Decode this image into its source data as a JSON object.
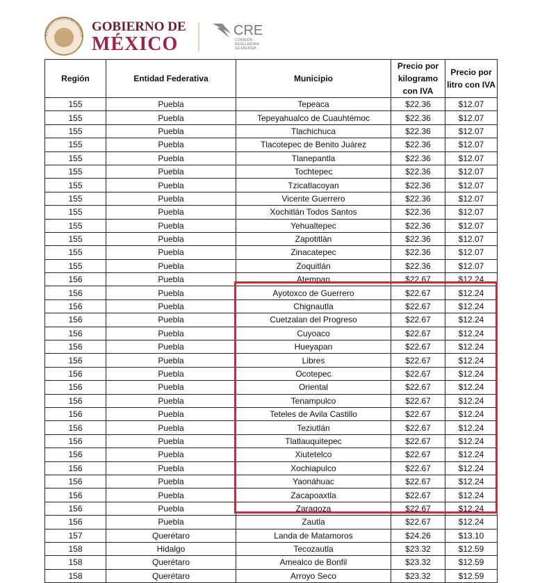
{
  "header": {
    "seal_text": "ESTADOS UNIDOS MEXICANOS",
    "gobierno": "GOBIERNO DE",
    "mexico": "MÉXICO",
    "cre": "CRE",
    "cre_sub": [
      "COMISIÓN",
      "REGULADORA",
      "DE ENERGÍA"
    ]
  },
  "table": {
    "columns": [
      "Región",
      "Entidad Federativa",
      "Municipio",
      "Precio por kilogramo con IVA",
      "Precio por litro con IVA"
    ],
    "rows": [
      [
        "155",
        "Puebla",
        "Tepeaca",
        "$22.36",
        "$12.07"
      ],
      [
        "155",
        "Puebla",
        "Tepeyahualco de Cuauhtémoc",
        "$22.36",
        "$12.07"
      ],
      [
        "155",
        "Puebla",
        "Tlachichuca",
        "$22.36",
        "$12.07"
      ],
      [
        "155",
        "Puebla",
        "Tlacotepec de Benito Juárez",
        "$22.36",
        "$12.07"
      ],
      [
        "155",
        "Puebla",
        "Tlanepantla",
        "$22.36",
        "$12.07"
      ],
      [
        "155",
        "Puebla",
        "Tochtepec",
        "$22.36",
        "$12.07"
      ],
      [
        "155",
        "Puebla",
        "Tzicatlacoyan",
        "$22.36",
        "$12.07"
      ],
      [
        "155",
        "Puebla",
        "Vicente Guerrero",
        "$22.36",
        "$12.07"
      ],
      [
        "155",
        "Puebla",
        "Xochitlán Todos Santos",
        "$22.36",
        "$12.07"
      ],
      [
        "155",
        "Puebla",
        "Yehualtepec",
        "$22.36",
        "$12.07"
      ],
      [
        "155",
        "Puebla",
        "Zapotitlán",
        "$22.36",
        "$12.07"
      ],
      [
        "155",
        "Puebla",
        "Zinacatepec",
        "$22.36",
        "$12.07"
      ],
      [
        "155",
        "Puebla",
        "Zoquitlán",
        "$22.36",
        "$12.07"
      ],
      [
        "156",
        "Puebla",
        "Atempan",
        "$22.67",
        "$12.24"
      ],
      [
        "156",
        "Puebla",
        "Ayotoxco de Guerrero",
        "$22.67",
        "$12.24"
      ],
      [
        "156",
        "Puebla",
        "Chignautla",
        "$22.67",
        "$12.24"
      ],
      [
        "156",
        "Puebla",
        "Cuetzalan del Progreso",
        "$22.67",
        "$12.24"
      ],
      [
        "156",
        "Puebla",
        "Cuyoaco",
        "$22.67",
        "$12.24"
      ],
      [
        "156",
        "Puebla",
        "Hueyapan",
        "$22.67",
        "$12.24"
      ],
      [
        "156",
        "Puebla",
        "Libres",
        "$22.67",
        "$12.24"
      ],
      [
        "156",
        "Puebla",
        "Ocotepec",
        "$22.67",
        "$12.24"
      ],
      [
        "156",
        "Puebla",
        "Oriental",
        "$22.67",
        "$12.24"
      ],
      [
        "156",
        "Puebla",
        "Tenampulco",
        "$22.67",
        "$12.24"
      ],
      [
        "156",
        "Puebla",
        "Teteles de Avila Castillo",
        "$22.67",
        "$12.24"
      ],
      [
        "156",
        "Puebla",
        "Teziutlán",
        "$22.67",
        "$12.24"
      ],
      [
        "156",
        "Puebla",
        "Tlatlauquitepec",
        "$22.67",
        "$12.24"
      ],
      [
        "156",
        "Puebla",
        "Xiutetelco",
        "$22.67",
        "$12.24"
      ],
      [
        "156",
        "Puebla",
        "Xochiapulco",
        "$22.67",
        "$12.24"
      ],
      [
        "156",
        "Puebla",
        "Yaonáhuac",
        "$22.67",
        "$12.24"
      ],
      [
        "156",
        "Puebla",
        "Zacapoaxtla",
        "$22.67",
        "$12.24"
      ],
      [
        "156",
        "Puebla",
        "Zaragoza",
        "$22.67",
        "$12.24"
      ],
      [
        "156",
        "Puebla",
        "Zautla",
        "$22.67",
        "$12.24"
      ],
      [
        "157",
        "Querétaro",
        "Landa de Matamoros",
        "$24.26",
        "$13.10"
      ],
      [
        "158",
        "Hidalgo",
        "Tecozautla",
        "$23.32",
        "$12.59"
      ],
      [
        "158",
        "Querétaro",
        "Amealco de Bonfil",
        "$23.32",
        "$12.59"
      ],
      [
        "158",
        "Querétaro",
        "Arroyo Seco",
        "$23.32",
        "$12.59"
      ]
    ]
  }
}
